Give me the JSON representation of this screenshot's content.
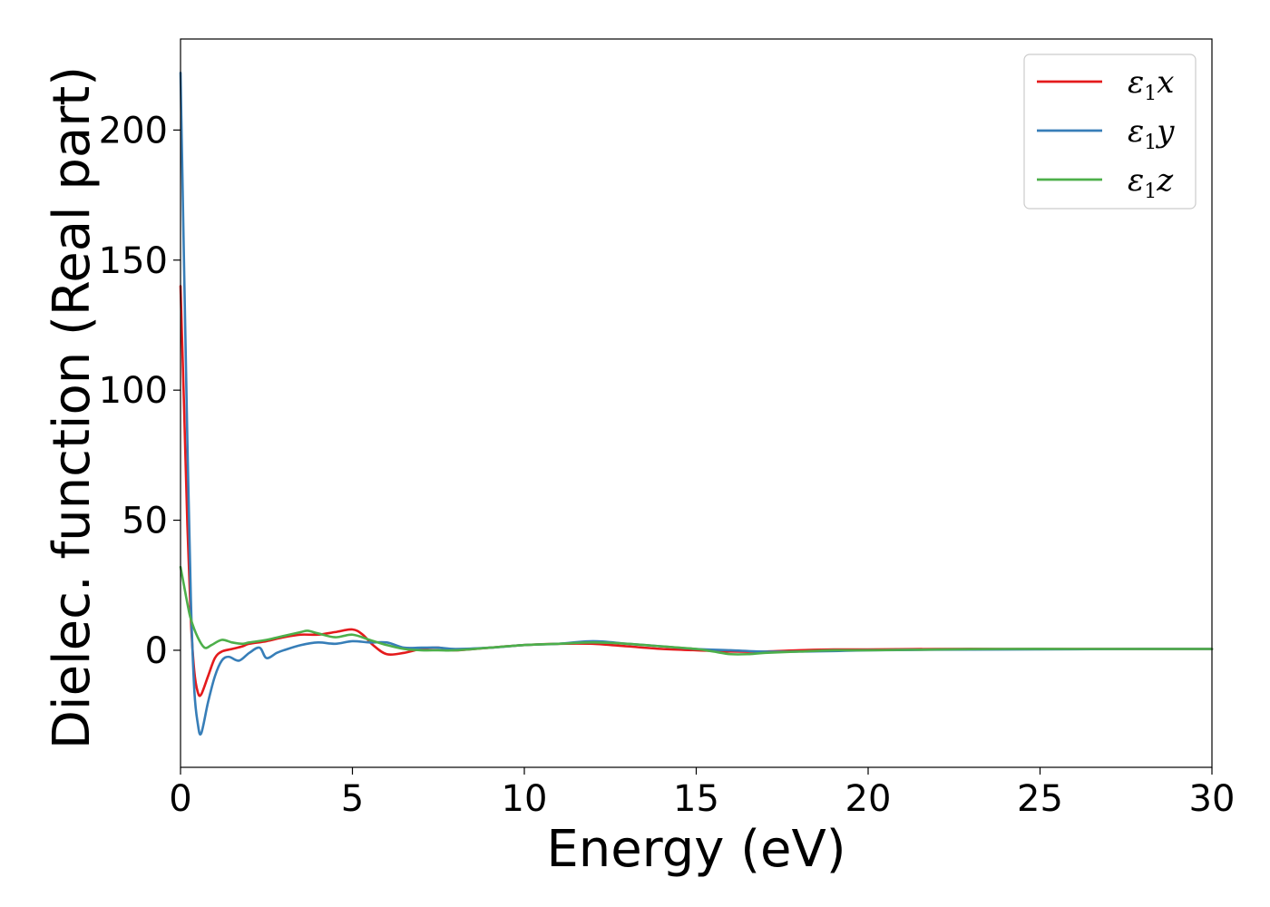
{
  "chart_data": {
    "type": "line",
    "title": "",
    "xlabel": "Energy (eV)",
    "ylabel": "Dielec. function (Real part)",
    "xlim": [
      0,
      30
    ],
    "ylim": [
      -45,
      235
    ],
    "xticks": [
      "0",
      "5",
      "10",
      "15",
      "20",
      "25",
      "30"
    ],
    "yticks": [
      "0",
      "50",
      "100",
      "150",
      "200"
    ],
    "grid": false,
    "legend_position": "top-right",
    "series": [
      {
        "name": "ε1x",
        "legend_symbol": "ε",
        "legend_sub": "1",
        "legend_var": "x",
        "color": "#e41a1c",
        "x": [
          0,
          0.1,
          0.2,
          0.3,
          0.4,
          0.5,
          0.6,
          0.8,
          1.0,
          1.2,
          1.5,
          1.8,
          2.0,
          2.5,
          3.0,
          3.5,
          4.0,
          4.5,
          5.0,
          5.3,
          5.6,
          6.0,
          6.5,
          7.0,
          7.5,
          8.0,
          9.0,
          10.0,
          11.0,
          12.0,
          13.0,
          14.0,
          15.0,
          16.0,
          17.0,
          18.0,
          19.0,
          20.0,
          22.0,
          24.0,
          26.0,
          28.0,
          30.0
        ],
        "y": [
          140,
          95,
          48,
          12,
          -8,
          -16,
          -17,
          -10,
          -3,
          -0.5,
          0.5,
          1.5,
          2.5,
          3.5,
          5,
          6,
          6,
          7,
          8,
          6,
          2,
          -1.5,
          -1,
          0.5,
          1,
          0,
          1,
          2,
          2.5,
          2.5,
          1.5,
          0.5,
          0,
          -0.5,
          -0.5,
          0,
          0.3,
          0.3,
          0.5,
          0.5,
          0.5,
          0.5,
          0.5
        ]
      },
      {
        "name": "ε1y",
        "legend_symbol": "ε",
        "legend_sub": "1",
        "legend_var": "y",
        "color": "#377eb8",
        "x": [
          0,
          0.1,
          0.2,
          0.3,
          0.4,
          0.5,
          0.6,
          0.8,
          1.0,
          1.2,
          1.4,
          1.7,
          2.0,
          2.3,
          2.5,
          2.8,
          3.0,
          3.5,
          4.0,
          4.5,
          5.0,
          5.5,
          6.0,
          6.5,
          7.0,
          7.5,
          8.0,
          9.0,
          10.0,
          11.0,
          12.0,
          13.0,
          14.0,
          15.0,
          16.0,
          17.0,
          18.0,
          19.0,
          20.0,
          22.0,
          24.0,
          26.0,
          28.0,
          30.0
        ],
        "y": [
          222,
          150,
          80,
          20,
          -15,
          -28,
          -32,
          -20,
          -10,
          -4,
          -2.5,
          -4,
          -1,
          1,
          -3,
          -1,
          0,
          2,
          3,
          2.5,
          3.5,
          3,
          3,
          1,
          1,
          1,
          0.5,
          1,
          2,
          2.5,
          3.5,
          2.5,
          1.5,
          0.5,
          0,
          -0.5,
          -0.5,
          -0.3,
          0,
          0.2,
          0.3,
          0.4,
          0.5,
          0.5
        ]
      },
      {
        "name": "ε1z",
        "legend_symbol": "ε",
        "legend_sub": "1",
        "legend_var": "z",
        "color": "#4daf4a",
        "x": [
          0,
          0.1,
          0.2,
          0.3,
          0.5,
          0.7,
          0.9,
          1.2,
          1.5,
          1.8,
          2.0,
          2.5,
          3.0,
          3.5,
          3.7,
          4.0,
          4.5,
          5.0,
          5.5,
          6.0,
          6.5,
          7.0,
          7.5,
          8.0,
          9.0,
          10.0,
          11.0,
          12.0,
          13.0,
          14.0,
          15.0,
          15.5,
          16.0,
          16.5,
          17.0,
          18.0,
          19.0,
          20.0,
          22.0,
          24.0,
          26.0,
          28.0,
          30.0
        ],
        "y": [
          32,
          25,
          18,
          12,
          5,
          1,
          2,
          4,
          3,
          2.5,
          3,
          4,
          5.5,
          7,
          7.5,
          6.5,
          5,
          6,
          4,
          2,
          0.5,
          0,
          0,
          0,
          1,
          2,
          2.5,
          3,
          2.5,
          1.5,
          0.5,
          -0.5,
          -1.5,
          -1.5,
          -1,
          -0.5,
          0,
          0,
          0.3,
          0.5,
          0.5,
          0.5,
          0.5
        ]
      }
    ]
  }
}
